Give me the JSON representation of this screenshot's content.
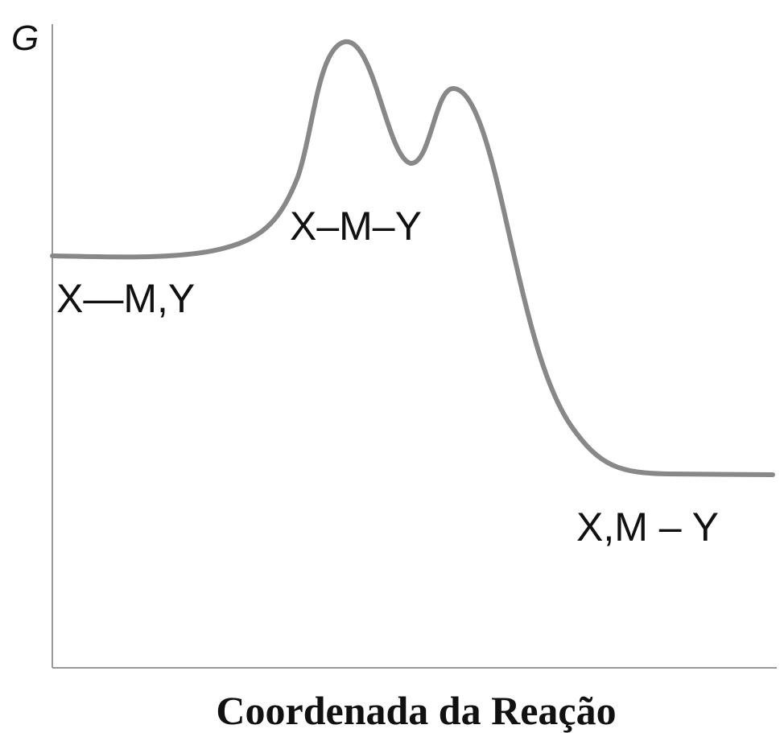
{
  "y_axis": {
    "label": "G"
  },
  "x_axis": {
    "label": "Coordenada da Reação"
  },
  "states": [
    {
      "label": "X—M,Y"
    },
    {
      "label": "X–M–Y"
    },
    {
      "label": "X,M – Y"
    }
  ]
}
